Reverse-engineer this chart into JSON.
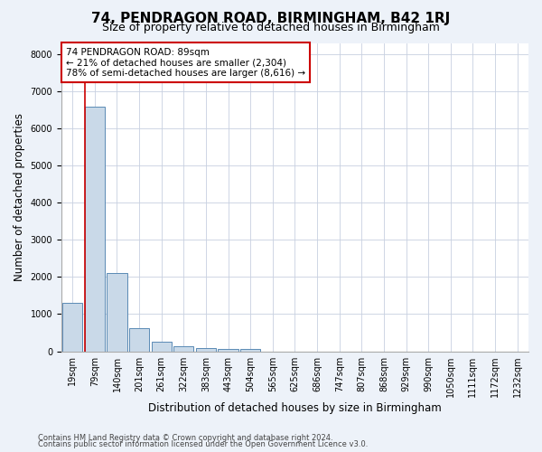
{
  "title": "74, PENDRAGON ROAD, BIRMINGHAM, B42 1RJ",
  "subtitle": "Size of property relative to detached houses in Birmingham",
  "xlabel": "Distribution of detached houses by size in Birmingham",
  "ylabel": "Number of detached properties",
  "footnote1": "Contains HM Land Registry data © Crown copyright and database right 2024.",
  "footnote2": "Contains public sector information licensed under the Open Government Licence v3.0.",
  "bin_labels": [
    "19sqm",
    "79sqm",
    "140sqm",
    "201sqm",
    "261sqm",
    "322sqm",
    "383sqm",
    "443sqm",
    "504sqm",
    "565sqm",
    "625sqm",
    "686sqm",
    "747sqm",
    "807sqm",
    "868sqm",
    "929sqm",
    "990sqm",
    "1050sqm",
    "1111sqm",
    "1172sqm",
    "1232sqm"
  ],
  "bar_values": [
    1300,
    6580,
    2100,
    630,
    260,
    140,
    90,
    60,
    60,
    0,
    0,
    0,
    0,
    0,
    0,
    0,
    0,
    0,
    0,
    0,
    0
  ],
  "bar_color": "#c9d9e8",
  "bar_edge_color": "#5a8ab5",
  "vline_color": "#cc0000",
  "annotation_line1": "74 PENDRAGON ROAD: 89sqm",
  "annotation_line2": "← 21% of detached houses are smaller (2,304)",
  "annotation_line3": "78% of semi-detached houses are larger (8,616) →",
  "annotation_box_color": "#ffffff",
  "annotation_box_edge": "#cc0000",
  "ylim": [
    0,
    8300
  ],
  "yticks": [
    0,
    1000,
    2000,
    3000,
    4000,
    5000,
    6000,
    7000,
    8000
  ],
  "bg_color": "#edf2f9",
  "plot_bg_color": "#ffffff",
  "grid_color": "#c8d0e0",
  "title_fontsize": 11,
  "subtitle_fontsize": 9,
  "axis_label_fontsize": 8.5,
  "tick_fontsize": 7,
  "annotation_fontsize": 7.5,
  "footnote_fontsize": 6
}
